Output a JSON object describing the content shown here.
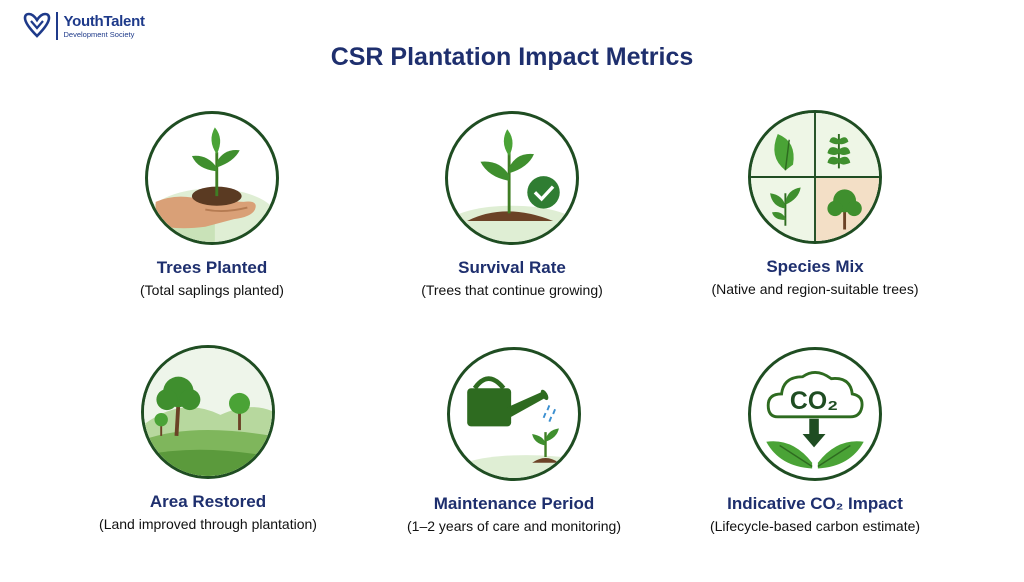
{
  "brand": {
    "name": "YouthTalent",
    "subtitle": "Development Society"
  },
  "title": "CSR Plantation Impact Metrics",
  "metrics": [
    {
      "label": "Trees Planted",
      "desc": "(Total saplings planted)",
      "icon": "hand-sapling-icon"
    },
    {
      "label": "Survival Rate",
      "desc": "(Trees that continue growing)",
      "icon": "sapling-check-icon"
    },
    {
      "label": "Species Mix",
      "desc": "(Native and region-suitable trees)",
      "icon": "leaf-grid-icon"
    },
    {
      "label": "Area Restored",
      "desc": "(Land improved through plantation)",
      "icon": "landscape-trees-icon"
    },
    {
      "label": "Maintenance Period",
      "desc": "(1–2 years of care and monitoring)",
      "icon": "watering-can-icon"
    },
    {
      "label": "Indicative CO₂ Impact",
      "desc": "(Lifecycle-based carbon estimate)",
      "icon": "co2-cloud-icon"
    }
  ],
  "co2_text": "CO₂",
  "colors": {
    "title": "#1e2f6e",
    "circle_border": "#1f4d22",
    "leaf_green": "#3f8f2e",
    "soil": "#6b4226",
    "check_green": "#2f7d32"
  }
}
